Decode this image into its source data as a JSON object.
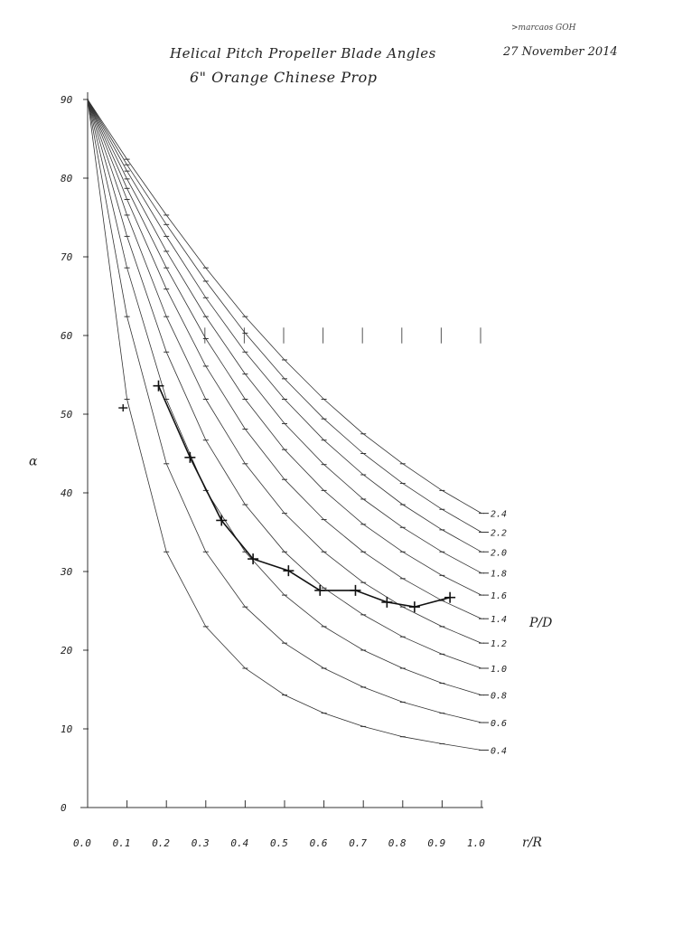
{
  "header": {
    "title": "Helical Pitch Propeller Blade Angles",
    "subtitle": "6\" Orange Chinese Prop",
    "author": ">marcaos GOH",
    "date": "27 November 2014"
  },
  "chart_data": {
    "type": "line",
    "title": "Helical Pitch Propeller Blade Angles",
    "subtitle": "6\" Orange Chinese Prop",
    "xlabel": "r/R",
    "ylabel": "α",
    "legend_title": "P/D",
    "xlim": [
      0.0,
      1.0
    ],
    "ylim": [
      0,
      90
    ],
    "x_ticks": [
      "0.0",
      "0.1",
      "0.2",
      "0.3",
      "0.4",
      "0.5",
      "0.6",
      "0.7",
      "0.8",
      "0.9",
      "1.0"
    ],
    "y_ticks": [
      "0",
      "10",
      "20",
      "30",
      "40",
      "50",
      "60",
      "70",
      "80",
      "90"
    ],
    "x": [
      0.0,
      0.1,
      0.2,
      0.3,
      0.4,
      0.5,
      0.6,
      0.7,
      0.8,
      0.9,
      1.0
    ],
    "series": [
      {
        "name": "0.4",
        "values": [
          90,
          51.9,
          32.5,
          23.0,
          17.7,
          14.3,
          12.0,
          10.3,
          9.0,
          8.1,
          7.3
        ]
      },
      {
        "name": "0.6",
        "values": [
          90,
          62.4,
          43.7,
          32.5,
          25.5,
          20.9,
          17.7,
          15.3,
          13.4,
          12.0,
          10.8
        ]
      },
      {
        "name": "0.8",
        "values": [
          90,
          68.6,
          51.9,
          40.3,
          32.5,
          27.0,
          23.0,
          20.0,
          17.7,
          15.8,
          14.3
        ]
      },
      {
        "name": "1.0",
        "values": [
          90,
          72.6,
          57.9,
          46.7,
          38.5,
          32.5,
          27.9,
          24.5,
          21.7,
          19.5,
          17.7
        ]
      },
      {
        "name": "1.2",
        "values": [
          90,
          75.3,
          62.4,
          51.9,
          43.7,
          37.4,
          32.5,
          28.6,
          25.5,
          23.0,
          20.9
        ]
      },
      {
        "name": "1.4",
        "values": [
          90,
          77.3,
          65.9,
          56.1,
          48.1,
          41.7,
          36.6,
          32.5,
          29.1,
          26.3,
          24.0
        ]
      },
      {
        "name": "1.6",
        "values": [
          90,
          78.7,
          68.6,
          59.6,
          51.9,
          45.5,
          40.3,
          36.0,
          32.5,
          29.5,
          27.0
        ]
      },
      {
        "name": "1.8",
        "values": [
          90,
          79.9,
          70.7,
          62.4,
          55.1,
          48.8,
          43.6,
          39.2,
          35.6,
          32.5,
          29.8
        ]
      },
      {
        "name": "2.0",
        "values": [
          90,
          80.9,
          72.6,
          64.8,
          57.9,
          51.9,
          46.7,
          42.3,
          38.5,
          35.3,
          32.5
        ]
      },
      {
        "name": "2.2",
        "values": [
          90,
          81.7,
          74.1,
          66.9,
          60.3,
          54.5,
          49.4,
          45.0,
          41.2,
          37.9,
          35.0
        ]
      },
      {
        "name": "2.4",
        "values": [
          90,
          82.4,
          75.3,
          68.6,
          62.4,
          56.9,
          51.9,
          47.5,
          43.7,
          40.3,
          37.4
        ]
      }
    ],
    "measured": {
      "name": "6\" Orange Chinese Prop",
      "points": [
        {
          "x": 0.18,
          "y": 53.6
        },
        {
          "x": 0.26,
          "y": 44.5
        },
        {
          "x": 0.34,
          "y": 36.5
        },
        {
          "x": 0.42,
          "y": 31.6
        },
        {
          "x": 0.51,
          "y": 30.1
        },
        {
          "x": 0.59,
          "y": 27.6
        },
        {
          "x": 0.68,
          "y": 27.6
        },
        {
          "x": 0.76,
          "y": 26.1
        },
        {
          "x": 0.83,
          "y": 25.5
        },
        {
          "x": 0.92,
          "y": 26.7
        }
      ],
      "stray_point": {
        "x": 0.09,
        "y": 50.8
      }
    },
    "grid": false,
    "legend_position": "right"
  }
}
